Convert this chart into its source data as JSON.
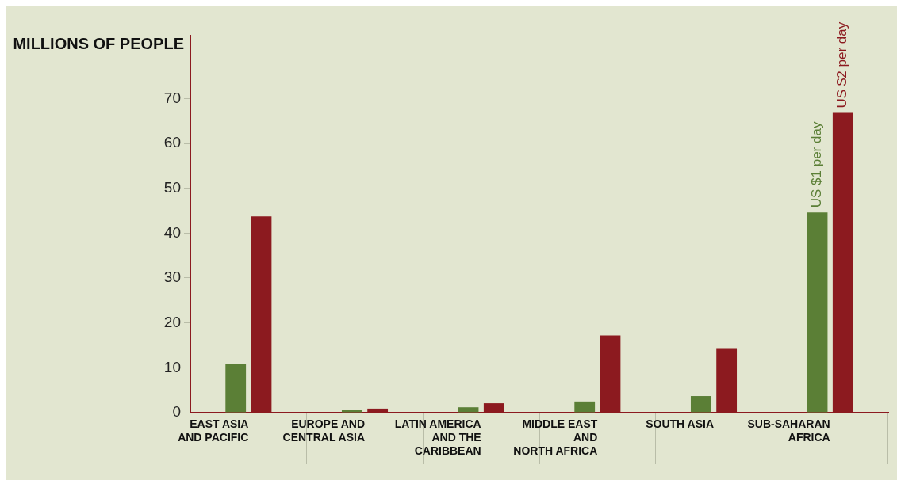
{
  "chart_data": {
    "type": "bar",
    "ylabel": "MILLIONS OF PEOPLE",
    "categories": [
      "EAST ASIA\nAND PACIFIC",
      "EUROPE AND\nCENTRAL ASIA",
      "LATIN AMERICA\nAND THE\nCARIBBEAN",
      "MIDDLE EAST\nAND\nNORTH AFRICA",
      "SOUTH ASIA",
      "SUB-SAHARAN\nAFRICA"
    ],
    "series": [
      {
        "name": "US $1 per day",
        "color": "#5b7f36",
        "values": [
          10.8,
          0.7,
          1.2,
          2.5,
          3.7,
          44.6
        ]
      },
      {
        "name": "US $2 per day",
        "color": "#8c1a1f",
        "values": [
          43.7,
          0.9,
          2.1,
          17.2,
          14.4,
          66.8
        ]
      }
    ],
    "ylim": [
      0,
      84
    ],
    "yticks": [
      0,
      10,
      20,
      30,
      40,
      50,
      60,
      70
    ],
    "grid": false,
    "legend": false
  }
}
